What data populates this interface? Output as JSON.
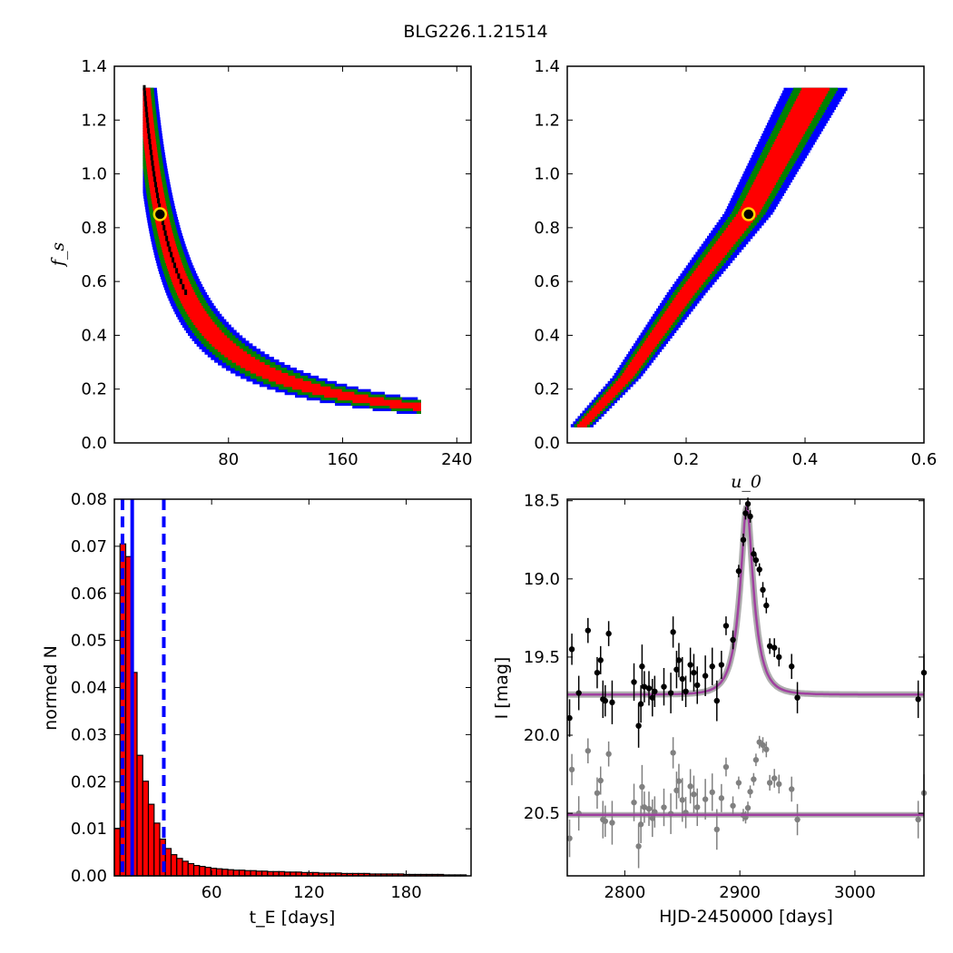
{
  "figure_title": "BLG226.1.21514",
  "colors": {
    "level1": "#ff0000",
    "level2": "#008000",
    "level3": "#0000ff",
    "best_marker_fill": "#000000",
    "best_marker_edge": "#ffd700",
    "hist_bar": "#ff0000",
    "hist_edge": "#000000",
    "median_line": "#0000ff",
    "model": "#a040a0",
    "points_main": "#000000",
    "points_resid": "#808080"
  },
  "chart_data": [
    {
      "id": "fs_vs_tE",
      "type": "heatmap",
      "title": "",
      "xlabel": "",
      "ylabel": "f_s",
      "xlim": [
        0,
        250
      ],
      "ylim": [
        0,
        1.4
      ],
      "xticks": [
        80,
        160,
        240
      ],
      "yticks": [
        0.0,
        0.2,
        0.4,
        0.6,
        0.8,
        1.0,
        1.2,
        1.4
      ],
      "best_fit": {
        "x": 32,
        "y": 0.85
      },
      "bands": [
        {
          "level": 3,
          "halfwidth": 0.55,
          "curve": "tE*fs"
        },
        {
          "level": 2,
          "halfwidth": 0.4
        },
        {
          "level": 1,
          "halfwidth": 0.22
        }
      ],
      "relation": {
        "product": 27.5,
        "x_range": [
          22,
          215
        ],
        "y_range": [
          0.06,
          1.32
        ]
      }
    },
    {
      "id": "fs_vs_u0",
      "type": "heatmap",
      "title": "",
      "xlabel": "u_0",
      "ylabel": "",
      "xlim": [
        0,
        0.6
      ],
      "ylim": [
        0,
        1.4
      ],
      "xticks": [
        0.2,
        0.4,
        0.6
      ],
      "yticks": [
        0.0,
        0.2,
        0.4,
        0.6,
        0.8,
        1.0,
        1.2,
        1.4
      ],
      "best_fit": {
        "x": 0.305,
        "y": 0.85
      },
      "ridge": [
        [
          0.025,
          0.06
        ],
        [
          0.1,
          0.24
        ],
        [
          0.2,
          0.55
        ],
        [
          0.305,
          0.85
        ],
        [
          0.42,
          1.32
        ]
      ],
      "bands": [
        {
          "level": 3,
          "halfwidth": 0.05
        },
        {
          "level": 2,
          "halfwidth": 0.035
        },
        {
          "level": 1,
          "halfwidth": 0.022
        }
      ]
    },
    {
      "id": "tE_hist",
      "type": "bar",
      "title": "",
      "xlabel": "t_E  [days]",
      "ylabel": "normed N",
      "xlim": [
        0,
        220
      ],
      "ylim": [
        0,
        0.08
      ],
      "xticks": [
        60,
        120,
        180
      ],
      "yticks": [
        0.0,
        0.01,
        0.02,
        0.03,
        0.04,
        0.05,
        0.06,
        0.07,
        0.08
      ],
      "bin_width": 3.5,
      "bin_start": 0,
      "values": [
        0.0101,
        0.0705,
        0.0678,
        0.0432,
        0.0256,
        0.0201,
        0.0152,
        0.0112,
        0.0078,
        0.0058,
        0.0045,
        0.0037,
        0.0031,
        0.0026,
        0.0022,
        0.002,
        0.0018,
        0.0016,
        0.0015,
        0.0014,
        0.0013,
        0.0012,
        0.0012,
        0.0011,
        0.0011,
        0.001,
        0.001,
        0.0009,
        0.0009,
        0.0009,
        0.0008,
        0.0008,
        0.0008,
        0.0007,
        0.0007,
        0.0007,
        0.0006,
        0.0006,
        0.0006,
        0.0006,
        0.0005,
        0.0005,
        0.0005,
        0.0005,
        0.0005,
        0.0004,
        0.0004,
        0.0004,
        0.0004,
        0.0004,
        0.0004,
        0.0003,
        0.0003,
        0.0003,
        0.0003,
        0.0003,
        0.0003,
        0.0003,
        0.0002,
        0.0002,
        0.0002,
        0.0002
      ],
      "median": 11,
      "lower": 5,
      "upper": 30.5
    },
    {
      "id": "lightcurve",
      "type": "scatter",
      "title": "",
      "xlabel": "HJD-2450000 [days]",
      "ylabel": "I [mag]",
      "xlim": [
        2750,
        3060
      ],
      "ylim": [
        20.9,
        18.49
      ],
      "xticks": [
        2800,
        2900,
        3000
      ],
      "yticks": [
        18.5,
        19.0,
        19.5,
        20.0,
        20.5
      ],
      "ytick_labels": [
        "18.5",
        "19.0",
        "19.5",
        "20.0",
        "20.5"
      ],
      "model": {
        "t0": 2906,
        "tE": 13,
        "u0": 0.305,
        "baseline": 19.74,
        "fs": 0.85,
        "resid_offset": 20.51
      },
      "points": [
        [
          2752,
          19.89,
          0.12
        ],
        [
          2754,
          19.45,
          0.1
        ],
        [
          2760,
          19.73,
          0.11
        ],
        [
          2768,
          19.33,
          0.08
        ],
        [
          2776,
          19.6,
          0.1
        ],
        [
          2779,
          19.52,
          0.09
        ],
        [
          2781,
          19.77,
          0.12
        ],
        [
          2783,
          19.78,
          0.1
        ],
        [
          2786,
          19.35,
          0.08
        ],
        [
          2789,
          19.79,
          0.14
        ],
        [
          2808,
          19.66,
          0.12
        ],
        [
          2812,
          19.94,
          0.14
        ],
        [
          2814,
          19.8,
          0.12
        ],
        [
          2815,
          19.56,
          0.14
        ],
        [
          2817,
          19.69,
          0.1
        ],
        [
          2821,
          19.7,
          0.11
        ],
        [
          2824,
          19.76,
          0.12
        ],
        [
          2826,
          19.72,
          0.1
        ],
        [
          2834,
          19.69,
          0.12
        ],
        [
          2840,
          19.73,
          0.13
        ],
        [
          2842,
          19.34,
          0.1
        ],
        [
          2845,
          19.58,
          0.12
        ],
        [
          2847,
          19.52,
          0.11
        ],
        [
          2850,
          19.64,
          0.14
        ],
        [
          2853,
          19.72,
          0.1
        ],
        [
          2857,
          19.55,
          0.11
        ],
        [
          2860,
          19.6,
          0.12
        ],
        [
          2863,
          19.68,
          0.12
        ],
        [
          2870,
          19.62,
          0.13
        ],
        [
          2876,
          19.56,
          0.12
        ],
        [
          2880,
          19.78,
          0.13
        ],
        [
          2884,
          19.55,
          0.09
        ],
        [
          2888,
          19.3,
          0.06
        ],
        [
          2894,
          19.39,
          0.06
        ],
        [
          2899,
          18.95,
          0.04
        ],
        [
          2903,
          18.75,
          0.04
        ],
        [
          2905,
          18.58,
          0.04
        ],
        [
          2907,
          18.52,
          0.04
        ],
        [
          2909,
          18.6,
          0.04
        ],
        [
          2912,
          18.84,
          0.04
        ],
        [
          2914,
          18.88,
          0.04
        ],
        [
          2917,
          18.94,
          0.04
        ],
        [
          2920,
          19.07,
          0.05
        ],
        [
          2923,
          19.17,
          0.05
        ],
        [
          2926,
          19.43,
          0.05
        ],
        [
          2930,
          19.44,
          0.06
        ],
        [
          2934,
          19.5,
          0.06
        ],
        [
          2945,
          19.56,
          0.08
        ],
        [
          2950,
          19.76,
          0.1
        ],
        [
          3055,
          19.77,
          0.12
        ],
        [
          3060,
          19.6,
          0.12
        ]
      ]
    }
  ]
}
